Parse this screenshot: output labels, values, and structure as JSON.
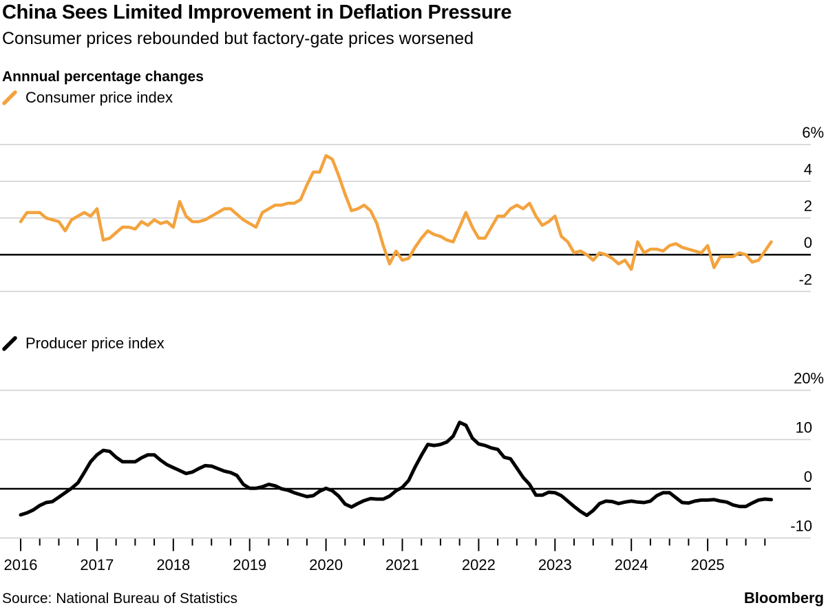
{
  "header": {
    "title": "China Sees Limited Improvement in Deflation Pressure",
    "subtitle": "Consumer prices rebounded but factory-gate prices worsened",
    "eyebrow": "Annnual percentage changes"
  },
  "footer": {
    "source": "Source: National Bureau of Statistics",
    "brand": "Bloomberg"
  },
  "colors": {
    "cpi_line": "#F3A33E",
    "ppi_line": "#000000",
    "grid": "#cdcdcd",
    "zero_line": "#000000",
    "text": "#000000",
    "background": "#ffffff"
  },
  "chart_data": [
    {
      "type": "line",
      "name": "consumer-price-index",
      "color_key": "cpi_line",
      "unit": "% year-over-year",
      "freq": "monthly",
      "start": "2016-01",
      "end": "2025-11",
      "ylim": [
        -2,
        6
      ],
      "grid": true,
      "legend_position": "top-left",
      "yticks": [
        {
          "label": "6%",
          "value": 6
        },
        {
          "label": "4",
          "value": 4
        },
        {
          "label": "2",
          "value": 2
        },
        {
          "label": "0",
          "value": 0
        },
        {
          "label": "-2",
          "value": -2
        }
      ],
      "series": [
        {
          "name": "Consumer price index",
          "values": [
            1.8,
            2.3,
            2.3,
            2.3,
            2.0,
            1.9,
            1.8,
            1.3,
            1.9,
            2.1,
            2.3,
            2.1,
            2.5,
            0.8,
            0.9,
            1.2,
            1.5,
            1.5,
            1.4,
            1.8,
            1.6,
            1.9,
            1.7,
            1.8,
            1.5,
            2.9,
            2.1,
            1.8,
            1.8,
            1.9,
            2.1,
            2.3,
            2.5,
            2.5,
            2.2,
            1.9,
            1.7,
            1.5,
            2.3,
            2.5,
            2.7,
            2.7,
            2.8,
            2.8,
            3.0,
            3.8,
            4.5,
            4.5,
            5.4,
            5.2,
            4.3,
            3.3,
            2.4,
            2.5,
            2.7,
            2.4,
            1.7,
            0.5,
            -0.5,
            0.2,
            -0.3,
            -0.2,
            0.4,
            0.9,
            1.3,
            1.1,
            1.0,
            0.8,
            0.7,
            1.5,
            2.3,
            1.5,
            0.9,
            0.9,
            1.5,
            2.1,
            2.1,
            2.5,
            2.7,
            2.5,
            2.8,
            2.1,
            1.6,
            1.8,
            2.1,
            1.0,
            0.7,
            0.1,
            0.2,
            0.0,
            -0.3,
            0.1,
            0.0,
            -0.2,
            -0.5,
            -0.3,
            -0.8,
            0.7,
            0.1,
            0.3,
            0.3,
            0.2,
            0.5,
            0.6,
            0.4,
            0.3,
            0.2,
            0.1,
            0.5,
            -0.7,
            -0.1,
            -0.1,
            -0.1,
            0.1,
            0.0,
            -0.4,
            -0.3,
            0.2,
            0.7
          ]
        }
      ]
    },
    {
      "type": "line",
      "name": "producer-price-index",
      "color_key": "ppi_line",
      "unit": "% year-over-year",
      "freq": "monthly",
      "start": "2016-01",
      "end": "2025-11",
      "ylim": [
        -10,
        20
      ],
      "grid": true,
      "legend_position": "top-left",
      "yticks": [
        {
          "label": "20%",
          "value": 20
        },
        {
          "label": "10",
          "value": 10
        },
        {
          "label": "0",
          "value": 0
        },
        {
          "label": "-10",
          "value": -10
        }
      ],
      "xticks": {
        "year_labels": [
          "2016",
          "2017",
          "2018",
          "2019",
          "2020",
          "2021",
          "2022",
          "2023",
          "2024",
          "2025"
        ],
        "first_year": 2016,
        "last_tick": 2025.75,
        "minor_step_years": 0.25
      },
      "series": [
        {
          "name": "Producer price index",
          "values": [
            -5.3,
            -4.9,
            -4.3,
            -3.4,
            -2.8,
            -2.6,
            -1.7,
            -0.8,
            0.1,
            1.2,
            3.3,
            5.5,
            6.9,
            7.8,
            7.6,
            6.4,
            5.5,
            5.5,
            5.5,
            6.3,
            6.9,
            6.9,
            5.8,
            4.9,
            4.3,
            3.7,
            3.1,
            3.4,
            4.1,
            4.7,
            4.6,
            4.1,
            3.6,
            3.3,
            2.7,
            0.9,
            0.1,
            0.1,
            0.4,
            0.9,
            0.6,
            0.0,
            -0.3,
            -0.8,
            -1.2,
            -1.6,
            -1.4,
            -0.5,
            0.1,
            -0.4,
            -1.5,
            -3.1,
            -3.7,
            -3.0,
            -2.4,
            -2.0,
            -2.1,
            -2.1,
            -1.5,
            -0.4,
            0.3,
            1.7,
            4.4,
            6.8,
            9.0,
            8.8,
            9.0,
            9.5,
            10.7,
            13.5,
            12.9,
            10.3,
            9.1,
            8.8,
            8.3,
            8.0,
            6.4,
            6.1,
            4.2,
            2.3,
            0.9,
            -1.3,
            -1.3,
            -0.7,
            -0.8,
            -1.4,
            -2.5,
            -3.6,
            -4.6,
            -5.4,
            -4.4,
            -3.0,
            -2.5,
            -2.6,
            -3.0,
            -2.7,
            -2.5,
            -2.7,
            -2.8,
            -2.5,
            -1.4,
            -0.8,
            -0.8,
            -1.8,
            -2.8,
            -2.9,
            -2.5,
            -2.3,
            -2.3,
            -2.2,
            -2.5,
            -2.7,
            -3.3,
            -3.6,
            -3.6,
            -2.9,
            -2.3,
            -2.1,
            -2.2
          ]
        }
      ]
    }
  ]
}
